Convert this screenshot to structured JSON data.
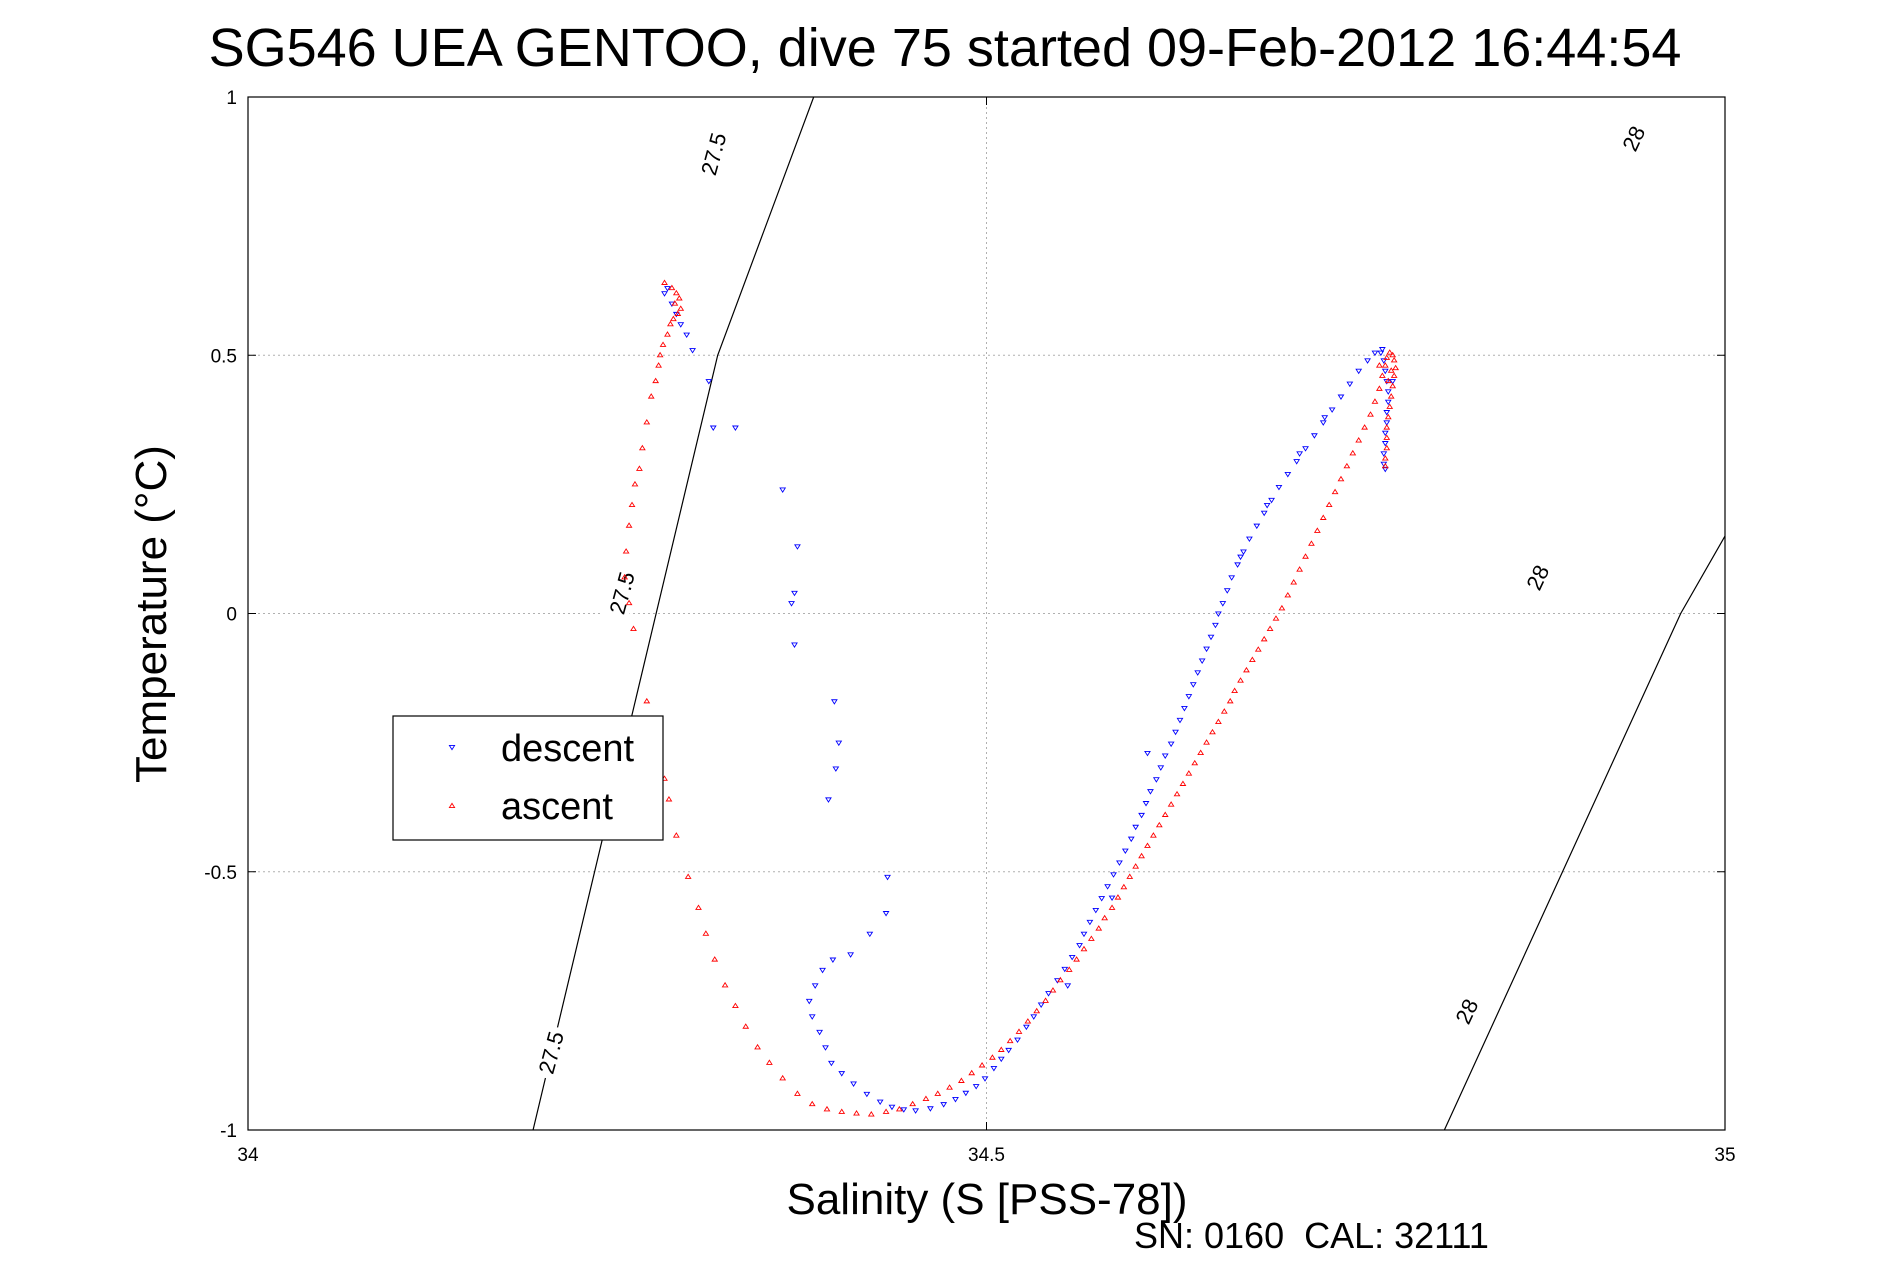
{
  "colors": {
    "descent": "#0000ff",
    "ascent": "#ff0000",
    "axis": "#000000",
    "grid": "#b0b0b0"
  },
  "footer": "SN: 0160  CAL: 32111",
  "chart_data": {
    "type": "scatter",
    "title": "SG546 UEA GENTOO, dive 75 started 09-Feb-2012 16:44:54",
    "xlabel": "Salinity (S [PSS-78])",
    "ylabel": "Temperature (°C)",
    "xlim": [
      34,
      35
    ],
    "ylim": [
      -1,
      1
    ],
    "xticks": [
      34,
      34.5,
      35
    ],
    "xtick_labels": [
      "34",
      "34.5",
      "35"
    ],
    "yticks": [
      1,
      0.5,
      0,
      -0.5,
      -1
    ],
    "ytick_labels": [
      "1",
      "0.5",
      "0",
      "-0.5",
      "-1"
    ],
    "grid": true,
    "legend_position": "middle-left",
    "contours": [
      {
        "value": "27.5",
        "points": [
          [
            34.193,
            -1.0
          ],
          [
            34.318,
            0.5
          ],
          [
            34.383,
            1.0
          ]
        ],
        "labels": [
          [
            34.205,
            -0.85
          ],
          [
            34.253,
            0.04
          ],
          [
            34.315,
            0.89
          ]
        ]
      },
      {
        "value": "28",
        "points": [
          [
            34.81,
            -1.0
          ],
          [
            34.89,
            -0.5
          ],
          [
            34.97,
            0.0
          ],
          [
            35.0,
            0.15
          ]
        ],
        "labels": [
          [
            34.825,
            -0.77
          ],
          [
            34.873,
            0.07
          ],
          [
            34.938,
            0.92
          ]
        ]
      }
    ],
    "series": [
      {
        "name": "descent",
        "marker": "triangle-down",
        "color": "#0000ff",
        "points": [
          [
            34.284,
            0.63
          ],
          [
            34.282,
            0.62
          ],
          [
            34.287,
            0.6
          ],
          [
            34.29,
            0.58
          ],
          [
            34.293,
            0.56
          ],
          [
            34.297,
            0.54
          ],
          [
            34.301,
            0.51
          ],
          [
            34.312,
            0.45
          ],
          [
            34.33,
            0.36
          ],
          [
            34.315,
            0.36
          ],
          [
            34.362,
            0.24
          ],
          [
            34.372,
            0.13
          ],
          [
            34.37,
            0.04
          ],
          [
            34.368,
            0.02
          ],
          [
            34.37,
            -0.06
          ],
          [
            34.397,
            -0.17
          ],
          [
            34.4,
            -0.25
          ],
          [
            34.398,
            -0.3
          ],
          [
            34.393,
            -0.36
          ],
          [
            34.433,
            -0.51
          ],
          [
            34.432,
            -0.58
          ],
          [
            34.421,
            -0.62
          ],
          [
            34.408,
            -0.66
          ],
          [
            34.396,
            -0.67
          ],
          [
            34.389,
            -0.69
          ],
          [
            34.384,
            -0.72
          ],
          [
            34.38,
            -0.75
          ],
          [
            34.382,
            -0.78
          ],
          [
            34.387,
            -0.81
          ],
          [
            34.391,
            -0.84
          ],
          [
            34.395,
            -0.87
          ],
          [
            34.402,
            -0.89
          ],
          [
            34.41,
            -0.91
          ],
          [
            34.419,
            -0.93
          ],
          [
            34.428,
            -0.945
          ],
          [
            34.436,
            -0.955
          ],
          [
            34.444,
            -0.96
          ],
          [
            34.452,
            -0.962
          ],
          [
            34.462,
            -0.958
          ],
          [
            34.471,
            -0.95
          ],
          [
            34.479,
            -0.94
          ],
          [
            34.486,
            -0.928
          ],
          [
            34.493,
            -0.915
          ],
          [
            34.499,
            -0.9
          ],
          [
            34.505,
            -0.88
          ],
          [
            34.51,
            -0.862
          ],
          [
            34.515,
            -0.845
          ],
          [
            34.521,
            -0.825
          ],
          [
            34.527,
            -0.8
          ],
          [
            34.532,
            -0.78
          ],
          [
            34.537,
            -0.757
          ],
          [
            34.542,
            -0.735
          ],
          [
            34.548,
            -0.71
          ],
          [
            34.553,
            -0.688
          ],
          [
            34.558,
            -0.665
          ],
          [
            34.563,
            -0.642
          ],
          [
            34.566,
            -0.62
          ],
          [
            34.57,
            -0.597
          ],
          [
            34.574,
            -0.574
          ],
          [
            34.578,
            -0.551
          ],
          [
            34.582,
            -0.528
          ],
          [
            34.586,
            -0.505
          ],
          [
            34.59,
            -0.482
          ],
          [
            34.594,
            -0.459
          ],
          [
            34.598,
            -0.436
          ],
          [
            34.601,
            -0.413
          ],
          [
            34.605,
            -0.39
          ],
          [
            34.608,
            -0.367
          ],
          [
            34.611,
            -0.344
          ],
          [
            34.615,
            -0.321
          ],
          [
            34.618,
            -0.298
          ],
          [
            34.621,
            -0.275
          ],
          [
            34.625,
            -0.252
          ],
          [
            34.628,
            -0.229
          ],
          [
            34.631,
            -0.206
          ],
          [
            34.634,
            -0.183
          ],
          [
            34.637,
            -0.16
          ],
          [
            34.64,
            -0.137
          ],
          [
            34.643,
            -0.114
          ],
          [
            34.646,
            -0.091
          ],
          [
            34.649,
            -0.068
          ],
          [
            34.652,
            -0.045
          ],
          [
            34.655,
            -0.022
          ],
          [
            34.657,
            0.0
          ],
          [
            34.609,
            -0.27
          ],
          [
            34.585,
            -0.55
          ],
          [
            34.555,
            -0.72
          ],
          [
            34.66,
            0.02
          ],
          [
            34.663,
            0.045
          ],
          [
            34.666,
            0.07
          ],
          [
            34.67,
            0.095
          ],
          [
            34.674,
            0.12
          ],
          [
            34.678,
            0.145
          ],
          [
            34.683,
            0.17
          ],
          [
            34.688,
            0.195
          ],
          [
            34.693,
            0.22
          ],
          [
            34.698,
            0.245
          ],
          [
            34.704,
            0.27
          ],
          [
            34.71,
            0.295
          ],
          [
            34.716,
            0.32
          ],
          [
            34.722,
            0.345
          ],
          [
            34.728,
            0.37
          ],
          [
            34.734,
            0.395
          ],
          [
            34.74,
            0.42
          ],
          [
            34.746,
            0.445
          ],
          [
            34.752,
            0.47
          ],
          [
            34.758,
            0.49
          ],
          [
            34.763,
            0.505
          ],
          [
            34.768,
            0.512
          ],
          [
            34.672,
            0.11
          ],
          [
            34.69,
            0.21
          ],
          [
            34.712,
            0.31
          ],
          [
            34.729,
            0.38
          ],
          [
            34.767,
            0.505
          ],
          [
            34.769,
            0.49
          ],
          [
            34.77,
            0.47
          ],
          [
            34.771,
            0.45
          ],
          [
            34.772,
            0.43
          ],
          [
            34.772,
            0.41
          ],
          [
            34.771,
            0.39
          ],
          [
            34.771,
            0.37
          ],
          [
            34.77,
            0.35
          ],
          [
            34.77,
            0.33
          ],
          [
            34.769,
            0.31
          ],
          [
            34.769,
            0.29
          ],
          [
            34.775,
            0.45
          ],
          [
            34.77,
            0.28
          ]
        ]
      },
      {
        "name": "ascent",
        "marker": "triangle-up",
        "color": "#ff0000",
        "points": [
          [
            34.282,
            0.64
          ],
          [
            34.287,
            0.63
          ],
          [
            34.29,
            0.62
          ],
          [
            34.292,
            0.61
          ],
          [
            34.289,
            0.6
          ],
          [
            34.293,
            0.59
          ],
          [
            34.291,
            0.58
          ],
          [
            34.288,
            0.57
          ],
          [
            34.286,
            0.56
          ],
          [
            34.284,
            0.54
          ],
          [
            34.281,
            0.52
          ],
          [
            34.279,
            0.5
          ],
          [
            34.278,
            0.48
          ],
          [
            34.276,
            0.45
          ],
          [
            34.273,
            0.42
          ],
          [
            34.27,
            0.37
          ],
          [
            34.267,
            0.32
          ],
          [
            34.265,
            0.28
          ],
          [
            34.262,
            0.25
          ],
          [
            34.26,
            0.21
          ],
          [
            34.258,
            0.17
          ],
          [
            34.256,
            0.12
          ],
          [
            34.255,
            0.07
          ],
          [
            34.258,
            0.02
          ],
          [
            34.261,
            -0.03
          ],
          [
            34.27,
            -0.17
          ],
          [
            34.273,
            -0.22
          ],
          [
            34.276,
            -0.27
          ],
          [
            34.279,
            -0.3
          ],
          [
            34.282,
            -0.32
          ],
          [
            34.285,
            -0.36
          ],
          [
            34.29,
            -0.43
          ],
          [
            34.298,
            -0.51
          ],
          [
            34.305,
            -0.57
          ],
          [
            34.31,
            -0.62
          ],
          [
            34.316,
            -0.67
          ],
          [
            34.323,
            -0.72
          ],
          [
            34.33,
            -0.76
          ],
          [
            34.337,
            -0.8
          ],
          [
            34.345,
            -0.84
          ],
          [
            34.353,
            -0.87
          ],
          [
            34.362,
            -0.9
          ],
          [
            34.372,
            -0.93
          ],
          [
            34.382,
            -0.95
          ],
          [
            34.392,
            -0.96
          ],
          [
            34.402,
            -0.965
          ],
          [
            34.412,
            -0.968
          ],
          [
            34.422,
            -0.97
          ],
          [
            34.432,
            -0.965
          ],
          [
            34.441,
            -0.96
          ],
          [
            34.45,
            -0.95
          ],
          [
            34.459,
            -0.94
          ],
          [
            34.467,
            -0.93
          ],
          [
            34.475,
            -0.918
          ],
          [
            34.483,
            -0.905
          ],
          [
            34.49,
            -0.89
          ],
          [
            34.497,
            -0.875
          ],
          [
            34.504,
            -0.86
          ],
          [
            34.51,
            -0.845
          ],
          [
            34.516,
            -0.828
          ],
          [
            34.522,
            -0.81
          ],
          [
            34.528,
            -0.79
          ],
          [
            34.534,
            -0.77
          ],
          [
            34.54,
            -0.75
          ],
          [
            34.545,
            -0.73
          ],
          [
            34.55,
            -0.71
          ],
          [
            34.556,
            -0.69
          ],
          [
            34.561,
            -0.67
          ],
          [
            34.566,
            -0.65
          ],
          [
            34.571,
            -0.63
          ],
          [
            34.576,
            -0.61
          ],
          [
            34.58,
            -0.59
          ],
          [
            34.585,
            -0.57
          ],
          [
            34.589,
            -0.55
          ],
          [
            34.593,
            -0.53
          ],
          [
            34.597,
            -0.51
          ],
          [
            34.601,
            -0.49
          ],
          [
            34.605,
            -0.47
          ],
          [
            34.609,
            -0.45
          ],
          [
            34.613,
            -0.43
          ],
          [
            34.617,
            -0.41
          ],
          [
            34.621,
            -0.39
          ],
          [
            34.625,
            -0.37
          ],
          [
            34.629,
            -0.35
          ],
          [
            34.633,
            -0.33
          ],
          [
            34.637,
            -0.31
          ],
          [
            34.641,
            -0.29
          ],
          [
            34.645,
            -0.27
          ],
          [
            34.649,
            -0.25
          ],
          [
            34.653,
            -0.23
          ],
          [
            34.657,
            -0.21
          ],
          [
            34.661,
            -0.19
          ],
          [
            34.665,
            -0.17
          ],
          [
            34.668,
            -0.15
          ],
          [
            34.672,
            -0.13
          ],
          [
            34.676,
            -0.11
          ],
          [
            34.68,
            -0.09
          ],
          [
            34.684,
            -0.07
          ],
          [
            34.688,
            -0.05
          ],
          [
            34.692,
            -0.03
          ],
          [
            34.696,
            -0.01
          ],
          [
            34.7,
            0.01
          ],
          [
            34.704,
            0.035
          ],
          [
            34.708,
            0.06
          ],
          [
            34.712,
            0.085
          ],
          [
            34.716,
            0.11
          ],
          [
            34.72,
            0.135
          ],
          [
            34.724,
            0.16
          ],
          [
            34.728,
            0.185
          ],
          [
            34.732,
            0.21
          ],
          [
            34.736,
            0.235
          ],
          [
            34.74,
            0.26
          ],
          [
            34.744,
            0.285
          ],
          [
            34.748,
            0.31
          ],
          [
            34.752,
            0.335
          ],
          [
            34.756,
            0.36
          ],
          [
            34.76,
            0.385
          ],
          [
            34.763,
            0.41
          ],
          [
            34.766,
            0.435
          ],
          [
            34.768,
            0.46
          ],
          [
            34.77,
            0.48
          ],
          [
            34.771,
            0.495
          ],
          [
            34.773,
            0.505
          ],
          [
            34.775,
            0.5
          ],
          [
            34.776,
            0.49
          ],
          [
            34.777,
            0.475
          ],
          [
            34.776,
            0.46
          ],
          [
            34.775,
            0.44
          ],
          [
            34.774,
            0.42
          ],
          [
            34.773,
            0.4
          ],
          [
            34.772,
            0.38
          ],
          [
            34.771,
            0.36
          ],
          [
            34.771,
            0.34
          ],
          [
            34.771,
            0.32
          ],
          [
            34.77,
            0.3
          ],
          [
            34.77,
            0.285
          ],
          [
            34.774,
            0.47
          ],
          [
            34.772,
            0.45
          ],
          [
            34.766,
            0.48
          ]
        ]
      }
    ]
  }
}
